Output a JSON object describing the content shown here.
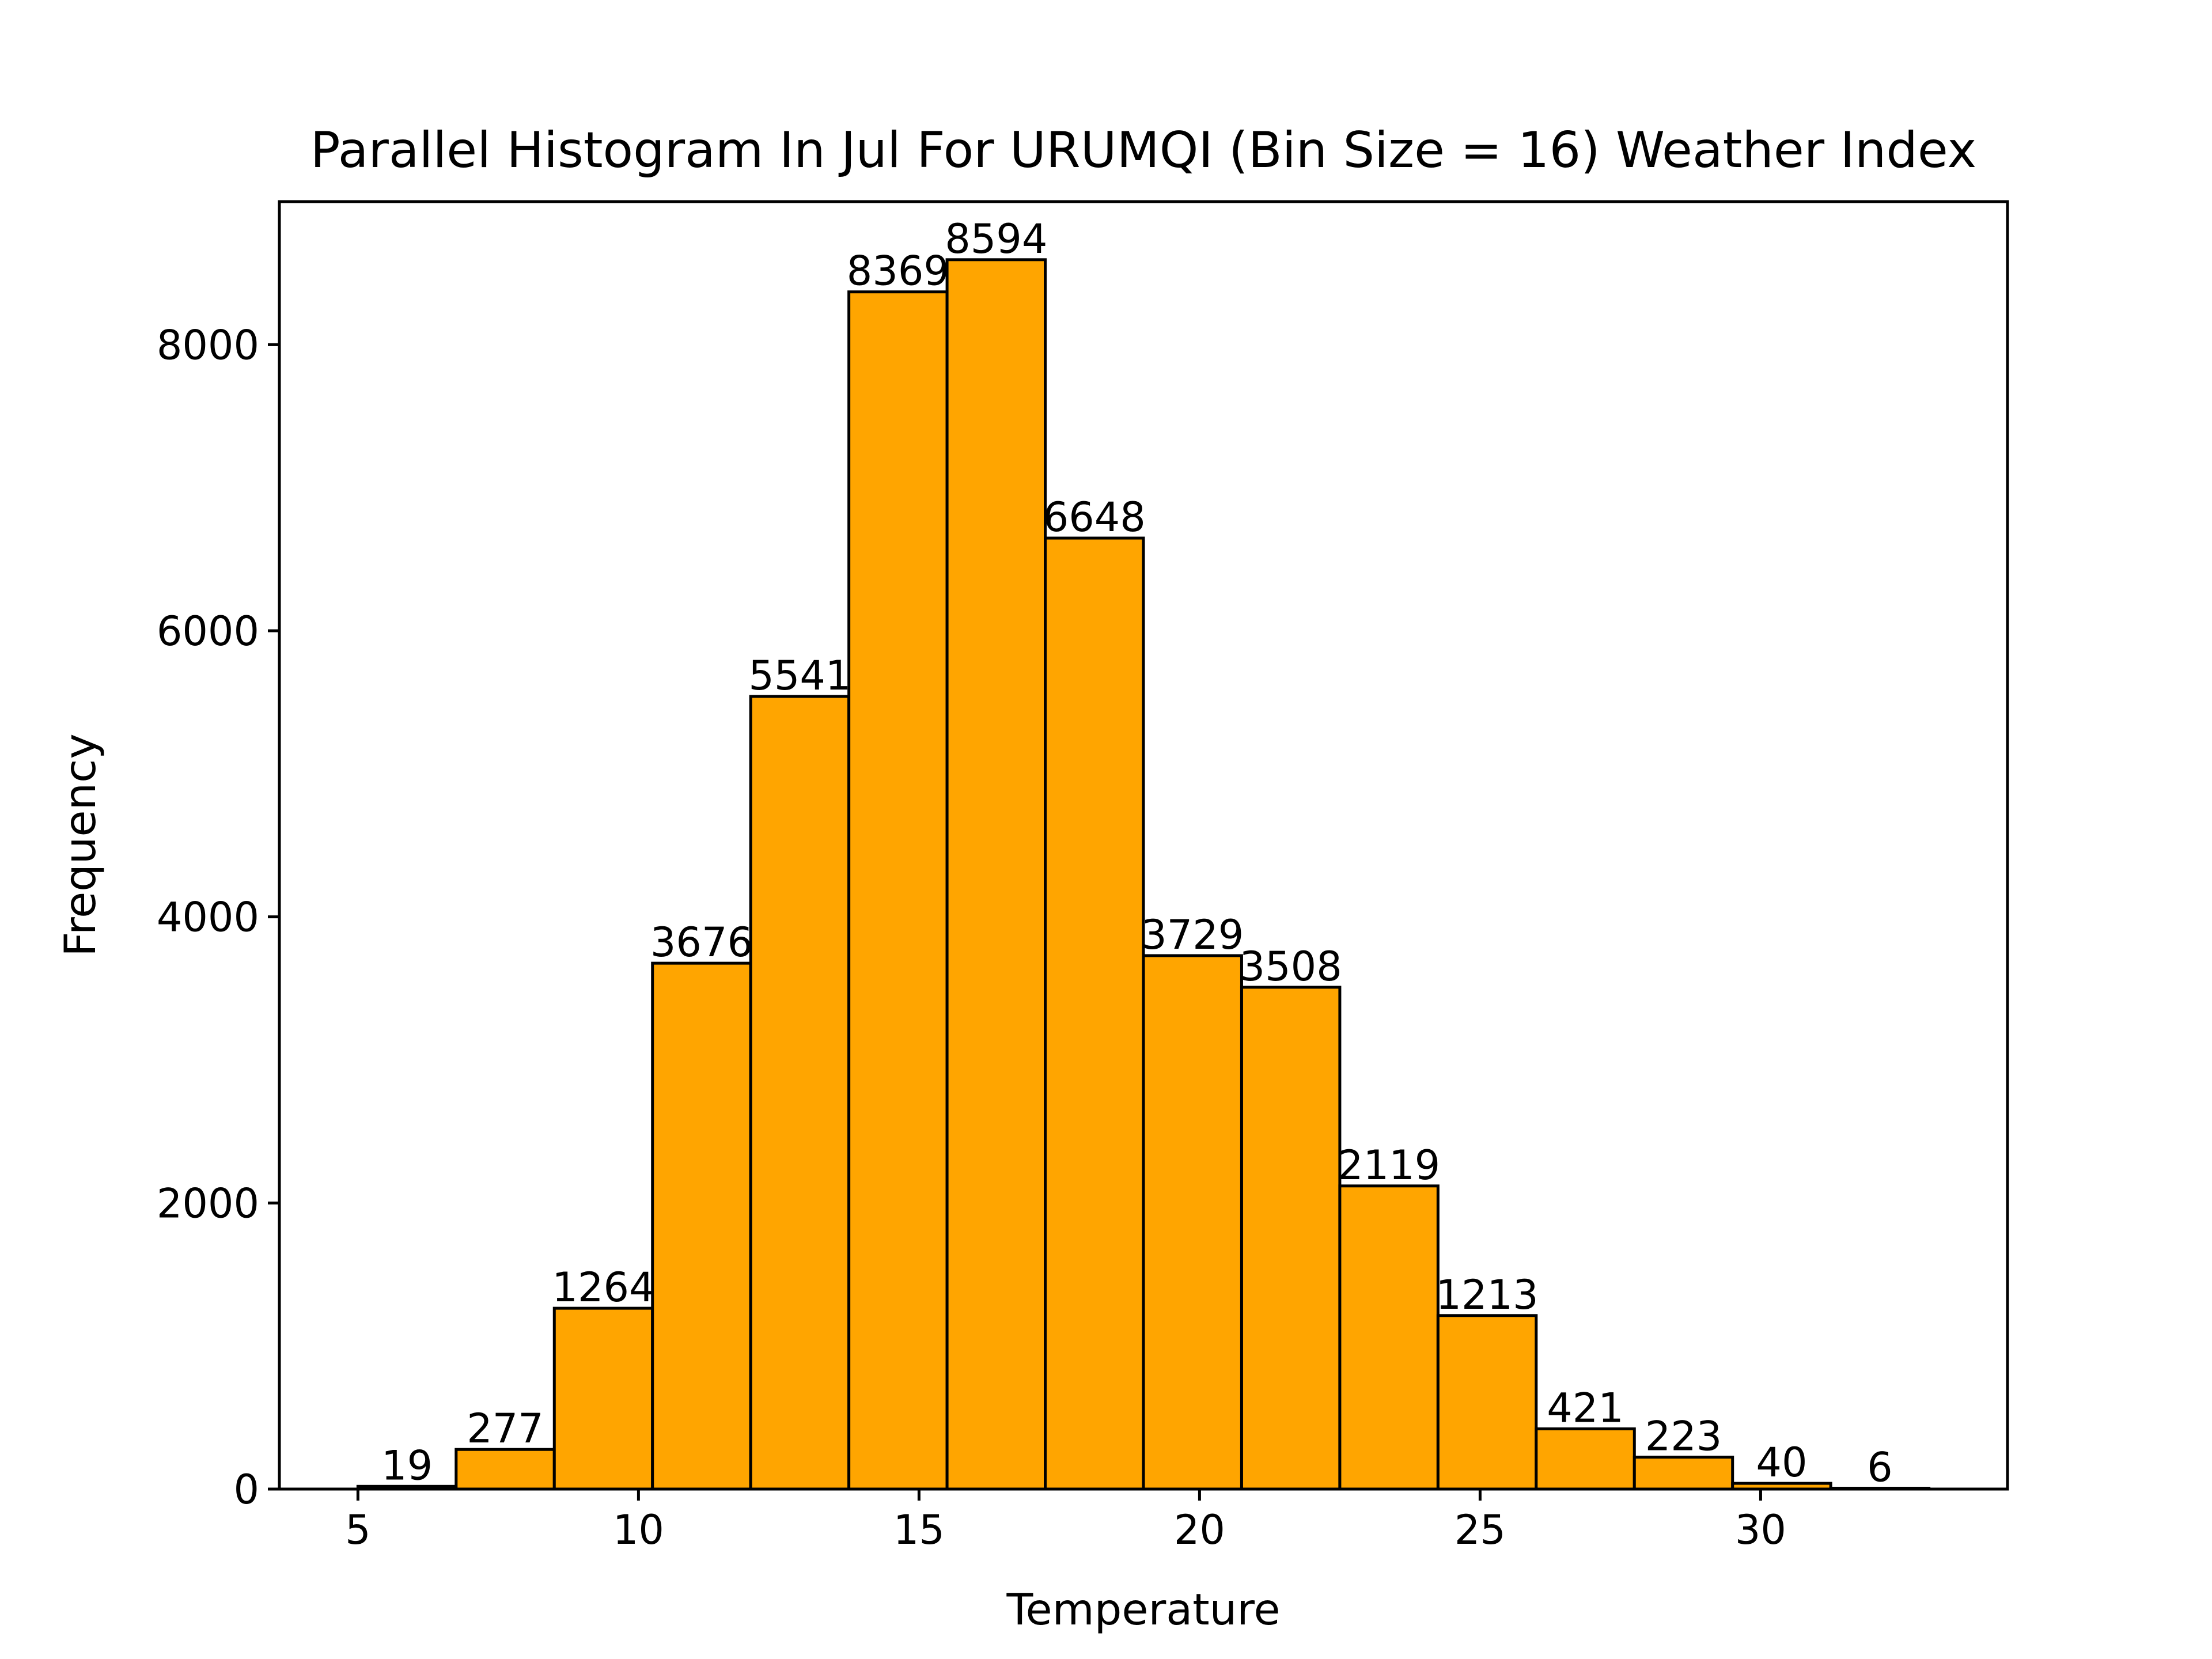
{
  "chart_data": {
    "type": "bar",
    "title": "Parallel Histogram In Jul For URUMQI (Bin Size = 16) Weather Index",
    "xlabel": "Temperature",
    "ylabel": "Frequency",
    "bin_edges": [
      5.0,
      6.75,
      8.5,
      10.25,
      12.0,
      13.75,
      15.5,
      17.25,
      19.0,
      20.75,
      22.5,
      24.25,
      26.0,
      27.75,
      29.5,
      31.25,
      33.0
    ],
    "values": [
      19,
      277,
      1264,
      3676,
      5541,
      8369,
      8594,
      6648,
      3729,
      3508,
      2119,
      1213,
      421,
      223,
      40,
      6
    ],
    "xlim": [
      3.6,
      34.4
    ],
    "ylim": [
      0,
      9000
    ],
    "xticks": [
      5,
      10,
      15,
      20,
      25,
      30
    ],
    "yticks": [
      0,
      2000,
      4000,
      6000,
      8000
    ],
    "bar_color": "#FFA500",
    "edge_color": "#000000",
    "grid": false
  }
}
